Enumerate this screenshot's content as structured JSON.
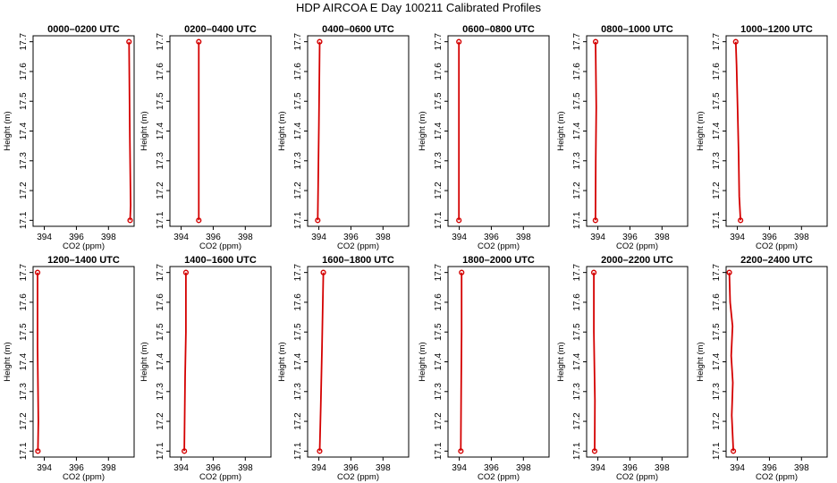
{
  "figure": {
    "title": "HDP AIRCOA E  Day 100211  Calibrated Profiles"
  },
  "colors": {
    "profile": "#d40000",
    "axis": "#000000"
  },
  "chart_data": {
    "type": "line",
    "xlabel": "CO2 (ppm)",
    "ylabel": "Height (m)",
    "xlim": [
      393.3,
      399.6
    ],
    "ylim": [
      17.08,
      17.72
    ],
    "xticks": [
      394,
      396,
      398
    ],
    "xtick_labels": [
      "394",
      "396",
      "398"
    ],
    "yticks": [
      17.1,
      17.2,
      17.3,
      17.4,
      17.5,
      17.6,
      17.7
    ],
    "ytick_labels": [
      "17.1",
      "17.2",
      "17.3",
      "17.4",
      "17.5",
      "17.6",
      "17.7"
    ],
    "grid": false,
    "panels": [
      {
        "title": "0000–0200 UTC",
        "x": [
          399.35,
          399.38,
          399.33,
          399.28
        ],
        "y": [
          17.1,
          17.15,
          17.38,
          17.7
        ]
      },
      {
        "title": "0200–0400 UTC",
        "x": [
          395.1,
          395.1,
          395.1
        ],
        "y": [
          17.1,
          17.4,
          17.7
        ]
      },
      {
        "title": "0400–0600 UTC",
        "x": [
          393.93,
          393.96,
          394.0,
          394.05
        ],
        "y": [
          17.1,
          17.22,
          17.42,
          17.7
        ]
      },
      {
        "title": "0600–0800 UTC",
        "x": [
          393.98,
          393.98,
          393.98
        ],
        "y": [
          17.1,
          17.4,
          17.7
        ]
      },
      {
        "title": "0800–1000 UTC",
        "x": [
          393.85,
          393.87,
          393.9,
          393.86
        ],
        "y": [
          17.1,
          17.3,
          17.48,
          17.7
        ]
      },
      {
        "title": "1000–1200 UTC",
        "x": [
          394.2,
          394.12,
          394.08,
          394.02,
          393.95,
          393.9
        ],
        "y": [
          17.1,
          17.18,
          17.32,
          17.47,
          17.62,
          17.7
        ]
      },
      {
        "title": "1200–1400 UTC",
        "x": [
          393.6,
          393.63,
          393.58,
          393.58
        ],
        "y": [
          17.1,
          17.2,
          17.45,
          17.7
        ]
      },
      {
        "title": "1400–1600 UTC",
        "x": [
          394.2,
          394.25,
          394.3,
          394.3
        ],
        "y": [
          17.1,
          17.35,
          17.5,
          17.7
        ]
      },
      {
        "title": "1600–1800 UTC",
        "x": [
          394.05,
          394.12,
          394.2,
          394.28
        ],
        "y": [
          17.1,
          17.25,
          17.45,
          17.7
        ]
      },
      {
        "title": "1800–2000 UTC",
        "x": [
          394.1,
          394.12,
          394.15,
          394.15
        ],
        "y": [
          17.1,
          17.3,
          17.5,
          17.7
        ]
      },
      {
        "title": "2000–2200 UTC",
        "x": [
          393.8,
          393.82,
          393.75,
          393.75
        ],
        "y": [
          17.1,
          17.27,
          17.5,
          17.7
        ]
      },
      {
        "title": "2200–2400 UTC",
        "x": [
          393.75,
          393.65,
          393.72,
          393.62,
          393.7,
          393.55,
          393.5
        ],
        "y": [
          17.1,
          17.22,
          17.33,
          17.42,
          17.52,
          17.6,
          17.7
        ]
      }
    ]
  }
}
